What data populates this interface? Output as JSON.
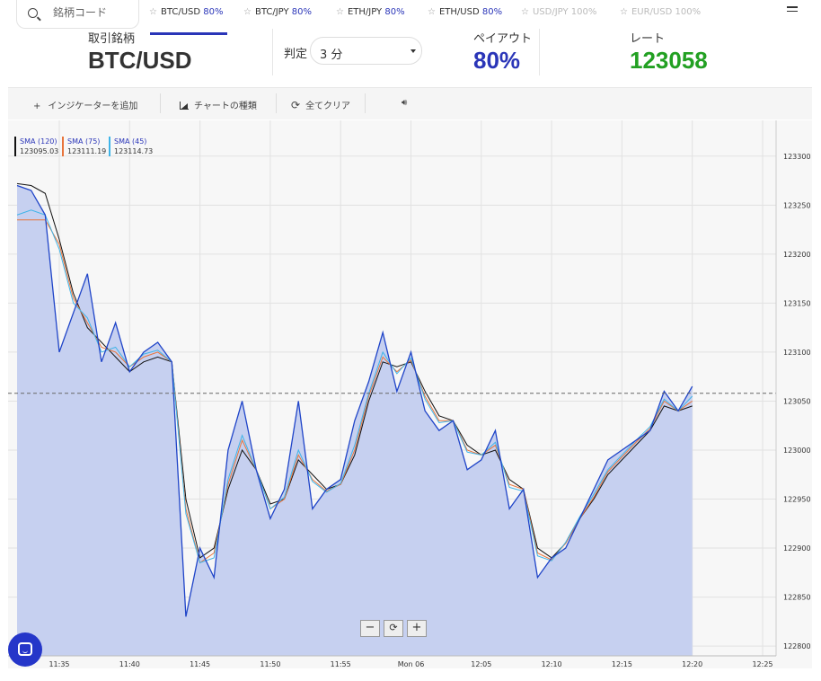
{
  "search": {
    "placeholder": "銘柄コード"
  },
  "tabs": [
    {
      "pair": "BTC/USD",
      "payout": "80%",
      "enabled": true,
      "active": true
    },
    {
      "pair": "BTC/JPY",
      "payout": "80%",
      "enabled": true,
      "active": false
    },
    {
      "pair": "ETH/JPY",
      "payout": "80%",
      "enabled": true,
      "active": false
    },
    {
      "pair": "ETH/USD",
      "payout": "80%",
      "enabled": true,
      "active": false
    },
    {
      "pair": "USD/JPY",
      "payout": "100%",
      "enabled": false,
      "active": false
    },
    {
      "pair": "EUR/USD",
      "payout": "100%",
      "enabled": false,
      "active": false
    }
  ],
  "info": {
    "symbol_label": "取引銘柄",
    "symbol": "BTC/USD",
    "judge_label": "判定",
    "judge_value": "3 分",
    "payout_label": "ペイアウト",
    "payout": "80%",
    "rate_label": "レート",
    "rate": "123058"
  },
  "toolbar": {
    "add_indicator": "インジケーターを追加",
    "chart_type": "チャートの種類",
    "clear_all": "全てクリア"
  },
  "legend": [
    {
      "name": "SMA (120)",
      "value": "123095.03",
      "color": "#111111"
    },
    {
      "name": "SMA (75)",
      "value": "123111.19",
      "color": "#e8743b"
    },
    {
      "name": "SMA (45)",
      "value": "123114.73",
      "color": "#3fb4e8"
    }
  ],
  "colors": {
    "accent": "#2a35b8",
    "rate": "#22a022",
    "price_line": "#1f44c8",
    "area": "#c6d0f0"
  },
  "chart_data": {
    "type": "area",
    "y_ticks": [
      123300,
      123250,
      123200,
      123150,
      123100,
      123050,
      123000,
      122950,
      122900,
      122850,
      122800
    ],
    "x_ticks": [
      "11:35",
      "11:40",
      "11:45",
      "11:50",
      "11:55",
      "Mon 06",
      "12:05",
      "12:10",
      "12:15",
      "12:20",
      "12:25"
    ],
    "ylim": [
      122790,
      123320
    ],
    "current_price": 123058,
    "price": {
      "t": [
        "11:32",
        "11:33",
        "11:34",
        "11:35",
        "11:36",
        "11:37",
        "11:38",
        "11:39",
        "11:40",
        "11:41",
        "11:42",
        "11:43",
        "11:44",
        "11:45",
        "11:46",
        "11:47",
        "11:48",
        "11:49",
        "11:50",
        "11:51",
        "11:52",
        "11:53",
        "11:54",
        "11:55",
        "11:56",
        "11:57",
        "11:58",
        "11:59",
        "12:00",
        "12:01",
        "12:02",
        "12:03",
        "12:04",
        "12:05",
        "12:06",
        "12:07",
        "12:08",
        "12:09",
        "12:10",
        "12:11",
        "12:12",
        "12:13",
        "12:14",
        "12:15",
        "12:16",
        "12:17",
        "12:18",
        "12:19",
        "12:20"
      ],
      "v": [
        123270,
        123265,
        123240,
        123100,
        123140,
        123180,
        123090,
        123130,
        123080,
        123100,
        123110,
        123090,
        122830,
        122900,
        122870,
        123000,
        123050,
        122980,
        122930,
        122960,
        123050,
        122940,
        122960,
        122970,
        123030,
        123070,
        123120,
        123060,
        123100,
        123040,
        123020,
        123030,
        122980,
        122990,
        123020,
        122940,
        122960,
        122870,
        122890,
        122900,
        122930,
        122960,
        122990,
        123000,
        123010,
        123020,
        123060,
        123040,
        123065
      ]
    },
    "sma": [
      {
        "name": "SMA (120)",
        "v": [
          123272,
          123270,
          123262,
          123215,
          123160,
          123125,
          123110,
          123095,
          123080,
          123090,
          123095,
          123090,
          122950,
          122890,
          122900,
          122960,
          123000,
          122980,
          122945,
          122950,
          122990,
          122975,
          122960,
          122965,
          122995,
          123050,
          123090,
          123085,
          123090,
          123060,
          123035,
          123030,
          123005,
          122995,
          123000,
          122970,
          122960,
          122900,
          122890,
          122905,
          122930,
          122950,
          122975,
          122990,
          123005,
          123020,
          123045,
          123040,
          123045
        ]
      },
      {
        "name": "SMA (75)",
        "v": [
          123235,
          123235,
          123235,
          123210,
          123155,
          123130,
          123105,
          123100,
          123085,
          123095,
          123100,
          123090,
          122940,
          122885,
          122895,
          122965,
          123010,
          122980,
          122940,
          122950,
          122995,
          122970,
          122958,
          122965,
          123000,
          123055,
          123095,
          123080,
          123092,
          123055,
          123030,
          123030,
          123000,
          122995,
          123005,
          122965,
          122960,
          122895,
          122888,
          122905,
          122930,
          122952,
          122978,
          122993,
          123008,
          123022,
          123050,
          123040,
          123050
        ]
      },
      {
        "name": "SMA (45)",
        "v": [
          123240,
          123245,
          123240,
          123205,
          123150,
          123135,
          123100,
          123105,
          123085,
          123098,
          123102,
          123090,
          122935,
          122885,
          122890,
          122970,
          123015,
          122980,
          122940,
          122952,
          123000,
          122968,
          122957,
          122966,
          123005,
          123058,
          123100,
          123078,
          123094,
          123052,
          123028,
          123030,
          122998,
          122995,
          123008,
          122962,
          122958,
          122892,
          122887,
          122906,
          122932,
          122955,
          122980,
          122995,
          123010,
          123024,
          123052,
          123040,
          123055
        ]
      }
    ]
  }
}
